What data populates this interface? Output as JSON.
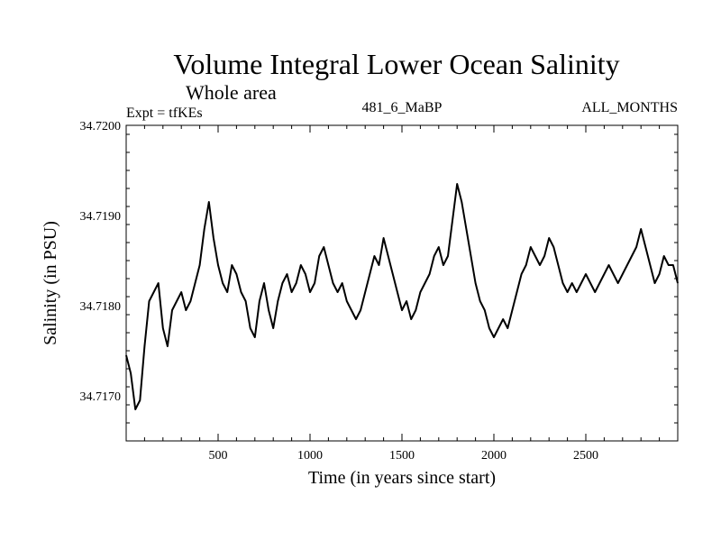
{
  "chart_data": {
    "type": "line",
    "title": "Volume Integral Lower Ocean Salinity",
    "subtitle": "Whole area",
    "annotations": {
      "experiment": "Expt = tfKEs",
      "run": "481_6_MaBP",
      "months": "ALL_MONTHS"
    },
    "xlabel": "Time (in years since start)",
    "ylabel": "Salinity (in PSU)",
    "xlim": [
      0,
      3000
    ],
    "ylim": [
      34.7165,
      34.72
    ],
    "x_ticks": [
      500,
      1000,
      1500,
      2000,
      2500
    ],
    "x_tick_labels": [
      "500",
      "1000",
      "1500",
      "2000",
      "2500"
    ],
    "y_ticks": [
      34.717,
      34.718,
      34.719,
      34.72
    ],
    "y_tick_labels": [
      "34.7170",
      "34.7180",
      "34.7190",
      "34.7200"
    ],
    "grid": false,
    "series": [
      {
        "color": "#000000",
        "x": [
          0,
          25,
          50,
          75,
          100,
          125,
          150,
          175,
          200,
          225,
          250,
          275,
          300,
          325,
          350,
          375,
          400,
          425,
          450,
          475,
          500,
          525,
          550,
          575,
          600,
          625,
          650,
          675,
          700,
          725,
          750,
          775,
          800,
          825,
          850,
          875,
          900,
          925,
          950,
          975,
          1000,
          1025,
          1050,
          1075,
          1100,
          1125,
          1150,
          1175,
          1200,
          1225,
          1250,
          1275,
          1300,
          1325,
          1350,
          1375,
          1400,
          1425,
          1450,
          1475,
          1500,
          1525,
          1550,
          1575,
          1600,
          1625,
          1650,
          1675,
          1700,
          1725,
          1750,
          1775,
          1800,
          1825,
          1850,
          1875,
          1900,
          1925,
          1950,
          1975,
          2000,
          2025,
          2050,
          2075,
          2100,
          2125,
          2150,
          2175,
          2200,
          2225,
          2250,
          2275,
          2300,
          2325,
          2350,
          2375,
          2400,
          2425,
          2450,
          2475,
          2500,
          2525,
          2550,
          2575,
          2600,
          2625,
          2650,
          2675,
          2700,
          2725,
          2750,
          2775,
          2800,
          2825,
          2850,
          2875,
          2900,
          2925,
          2950,
          2975,
          3000
        ],
        "values": [
          34.71745,
          34.71725,
          34.71685,
          34.71695,
          34.71755,
          34.71805,
          34.71815,
          34.71825,
          34.71775,
          34.71755,
          34.71795,
          34.71805,
          34.71815,
          34.71795,
          34.71805,
          34.71825,
          34.71845,
          34.71885,
          34.71915,
          34.71875,
          34.71845,
          34.71825,
          34.71815,
          34.71845,
          34.71835,
          34.71815,
          34.71805,
          34.71775,
          34.71765,
          34.71805,
          34.71825,
          34.71795,
          34.71775,
          34.71805,
          34.71825,
          34.71835,
          34.71815,
          34.71825,
          34.71845,
          34.71835,
          34.71815,
          34.71825,
          34.71855,
          34.71865,
          34.71845,
          34.71825,
          34.71815,
          34.71825,
          34.71805,
          34.71795,
          34.71785,
          34.71795,
          34.71815,
          34.71835,
          34.71855,
          34.71845,
          34.71875,
          34.71855,
          34.71835,
          34.71815,
          34.71795,
          34.71805,
          34.71785,
          34.71795,
          34.71815,
          34.71825,
          34.71835,
          34.71855,
          34.71865,
          34.71845,
          34.71855,
          34.71895,
          34.71935,
          34.71915,
          34.71885,
          34.71855,
          34.71825,
          34.71805,
          34.71795,
          34.71775,
          34.71765,
          34.71775,
          34.71785,
          34.71775,
          34.71795,
          34.71815,
          34.71835,
          34.71845,
          34.71865,
          34.71855,
          34.71845,
          34.71855,
          34.71875,
          34.71865,
          34.71845,
          34.71825,
          34.71815,
          34.71825,
          34.71815,
          34.71825,
          34.71835,
          34.71825,
          34.71815,
          34.71825,
          34.71835,
          34.71845,
          34.71835,
          34.71825,
          34.71835,
          34.71845,
          34.71855,
          34.71865,
          34.71885,
          34.71865,
          34.71845,
          34.71825,
          34.71835,
          34.71855,
          34.71845,
          34.71845,
          34.71825
        ]
      }
    ]
  }
}
